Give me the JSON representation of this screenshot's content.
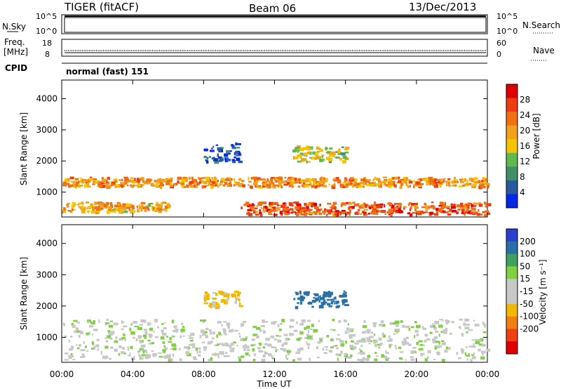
{
  "header": {
    "radar": "TIGER (fitACF)",
    "beam": "Beam 06",
    "date": "13/Dec/2013"
  },
  "strips": {
    "noise_left_label": "N.Sky",
    "noise_right_label": "N.Search",
    "noise_left_ticks": [
      "10^5",
      "10^0"
    ],
    "noise_right_ticks": [
      "10^5",
      "10^0"
    ],
    "freq_label_1": "Freq.",
    "freq_label_2": "[MHz]",
    "freq_ticks": [
      "18",
      "8"
    ],
    "nave_label": "Nave",
    "nave_ticks": [
      "60",
      "0"
    ],
    "cpid_label": "CPID",
    "cpid_value": "normal (fast) 151"
  },
  "colors": {
    "power_scale": [
      "#0028e6",
      "#2a5a9e",
      "#3f8f6a",
      "#5fb850",
      "#f4c400",
      "#f2a21a",
      "#f07014",
      "#ee3c10",
      "#e00000"
    ],
    "velocity_scale": [
      "#2a3fd0",
      "#2a70a8",
      "#3fa060",
      "#80d040",
      "#c8c8c8",
      "#c8c8c8",
      "#f2b800",
      "#f08010",
      "#ee4010",
      "#e00000"
    ]
  },
  "chart_data": [
    {
      "type": "heatmap",
      "name": "power",
      "ylabel": "Slant Range [km]",
      "xlabel": "",
      "x_ticks": [
        "00:00",
        "04:00",
        "08:00",
        "12:00",
        "16:00",
        "20:00",
        "00:00"
      ],
      "y_ticks": [
        1000,
        2000,
        3000,
        4000
      ],
      "ylim": [
        200,
        4600
      ],
      "xlim_hours": [
        0,
        24
      ],
      "colorbar": {
        "label": "Power [dB]",
        "ticks": [
          4,
          8,
          12,
          16,
          20,
          24,
          28
        ]
      },
      "features": [
        {
          "hours": [
            0,
            24
          ],
          "range_km": [
            1200,
            1500
          ],
          "power_db": 24
        },
        {
          "hours": [
            0,
            6
          ],
          "range_km": [
            400,
            700
          ],
          "power_db": 22
        },
        {
          "hours": [
            10,
            24
          ],
          "range_km": [
            300,
            700
          ],
          "power_db": 28
        },
        {
          "hours": [
            8,
            10
          ],
          "range_km": [
            2000,
            2600
          ],
          "power_db": 8
        },
        {
          "hours": [
            13,
            16
          ],
          "range_km": [
            2000,
            2500
          ],
          "power_db": 18
        }
      ]
    },
    {
      "type": "heatmap",
      "name": "velocity",
      "ylabel": "Slant Range [km]",
      "xlabel": "Time UT",
      "x_ticks": [
        "00:00",
        "04:00",
        "08:00",
        "12:00",
        "16:00",
        "20:00",
        "00:00"
      ],
      "y_ticks": [
        1000,
        2000,
        3000,
        4000
      ],
      "ylim": [
        200,
        4600
      ],
      "xlim_hours": [
        0,
        24
      ],
      "colorbar": {
        "label": "Velocity [m s⁻¹]",
        "ticks": [
          200,
          100,
          50,
          15,
          -15,
          -50,
          -100,
          -200
        ]
      },
      "features": [
        {
          "hours": [
            0,
            24
          ],
          "range_km": [
            300,
            1600
          ],
          "velocity": 0
        },
        {
          "hours": [
            13,
            16
          ],
          "range_km": [
            2000,
            2500
          ],
          "velocity": 150
        },
        {
          "hours": [
            8,
            10
          ],
          "range_km": [
            2000,
            2500
          ],
          "velocity": -60
        }
      ]
    }
  ]
}
